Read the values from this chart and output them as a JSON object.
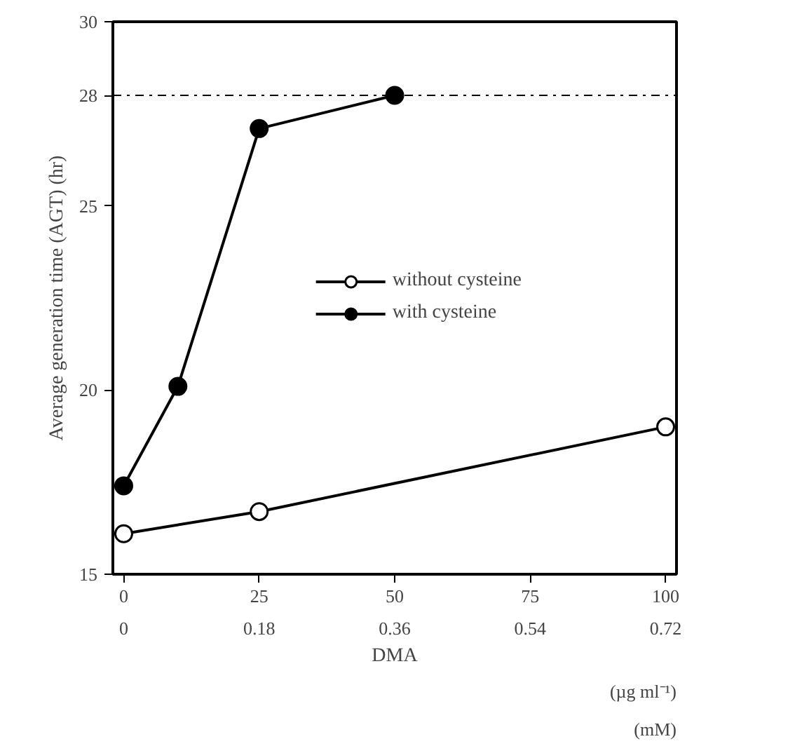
{
  "chart_data": {
    "type": "line",
    "xlabel": "DMA",
    "ylabel": "Average generation time (AGT) (hr)",
    "xlim": [
      -2,
      102
    ],
    "xticks": [
      0,
      25,
      50,
      75,
      100
    ],
    "x2lim": [
      -0.0144,
      0.7344
    ],
    "x2ticks": [
      0,
      0.18,
      0.36,
      0.54,
      0.72
    ],
    "ylim": [
      15,
      30
    ],
    "yticks": [
      15,
      20,
      25,
      28,
      30
    ],
    "series": [
      {
        "name": "without cysteine",
        "color": "#ffffff",
        "x": [
          0,
          25,
          100
        ],
        "values": [
          16.1,
          16.7,
          19.0
        ]
      },
      {
        "name": "with cysteine",
        "color": "#000000",
        "x": [
          0,
          10,
          25,
          50
        ],
        "values": [
          17.4,
          20.1,
          27.1,
          28.0
        ]
      }
    ],
    "ref_lines": [
      {
        "axis": "y",
        "value": 28,
        "label": null,
        "color": "#000000",
        "line_style": "dashdot"
      }
    ],
    "annotations": [
      "(µg ml⁻¹)",
      "(mM)"
    ],
    "marker": "circle",
    "line_style": "solid",
    "legend": "right",
    "grid": false
  }
}
